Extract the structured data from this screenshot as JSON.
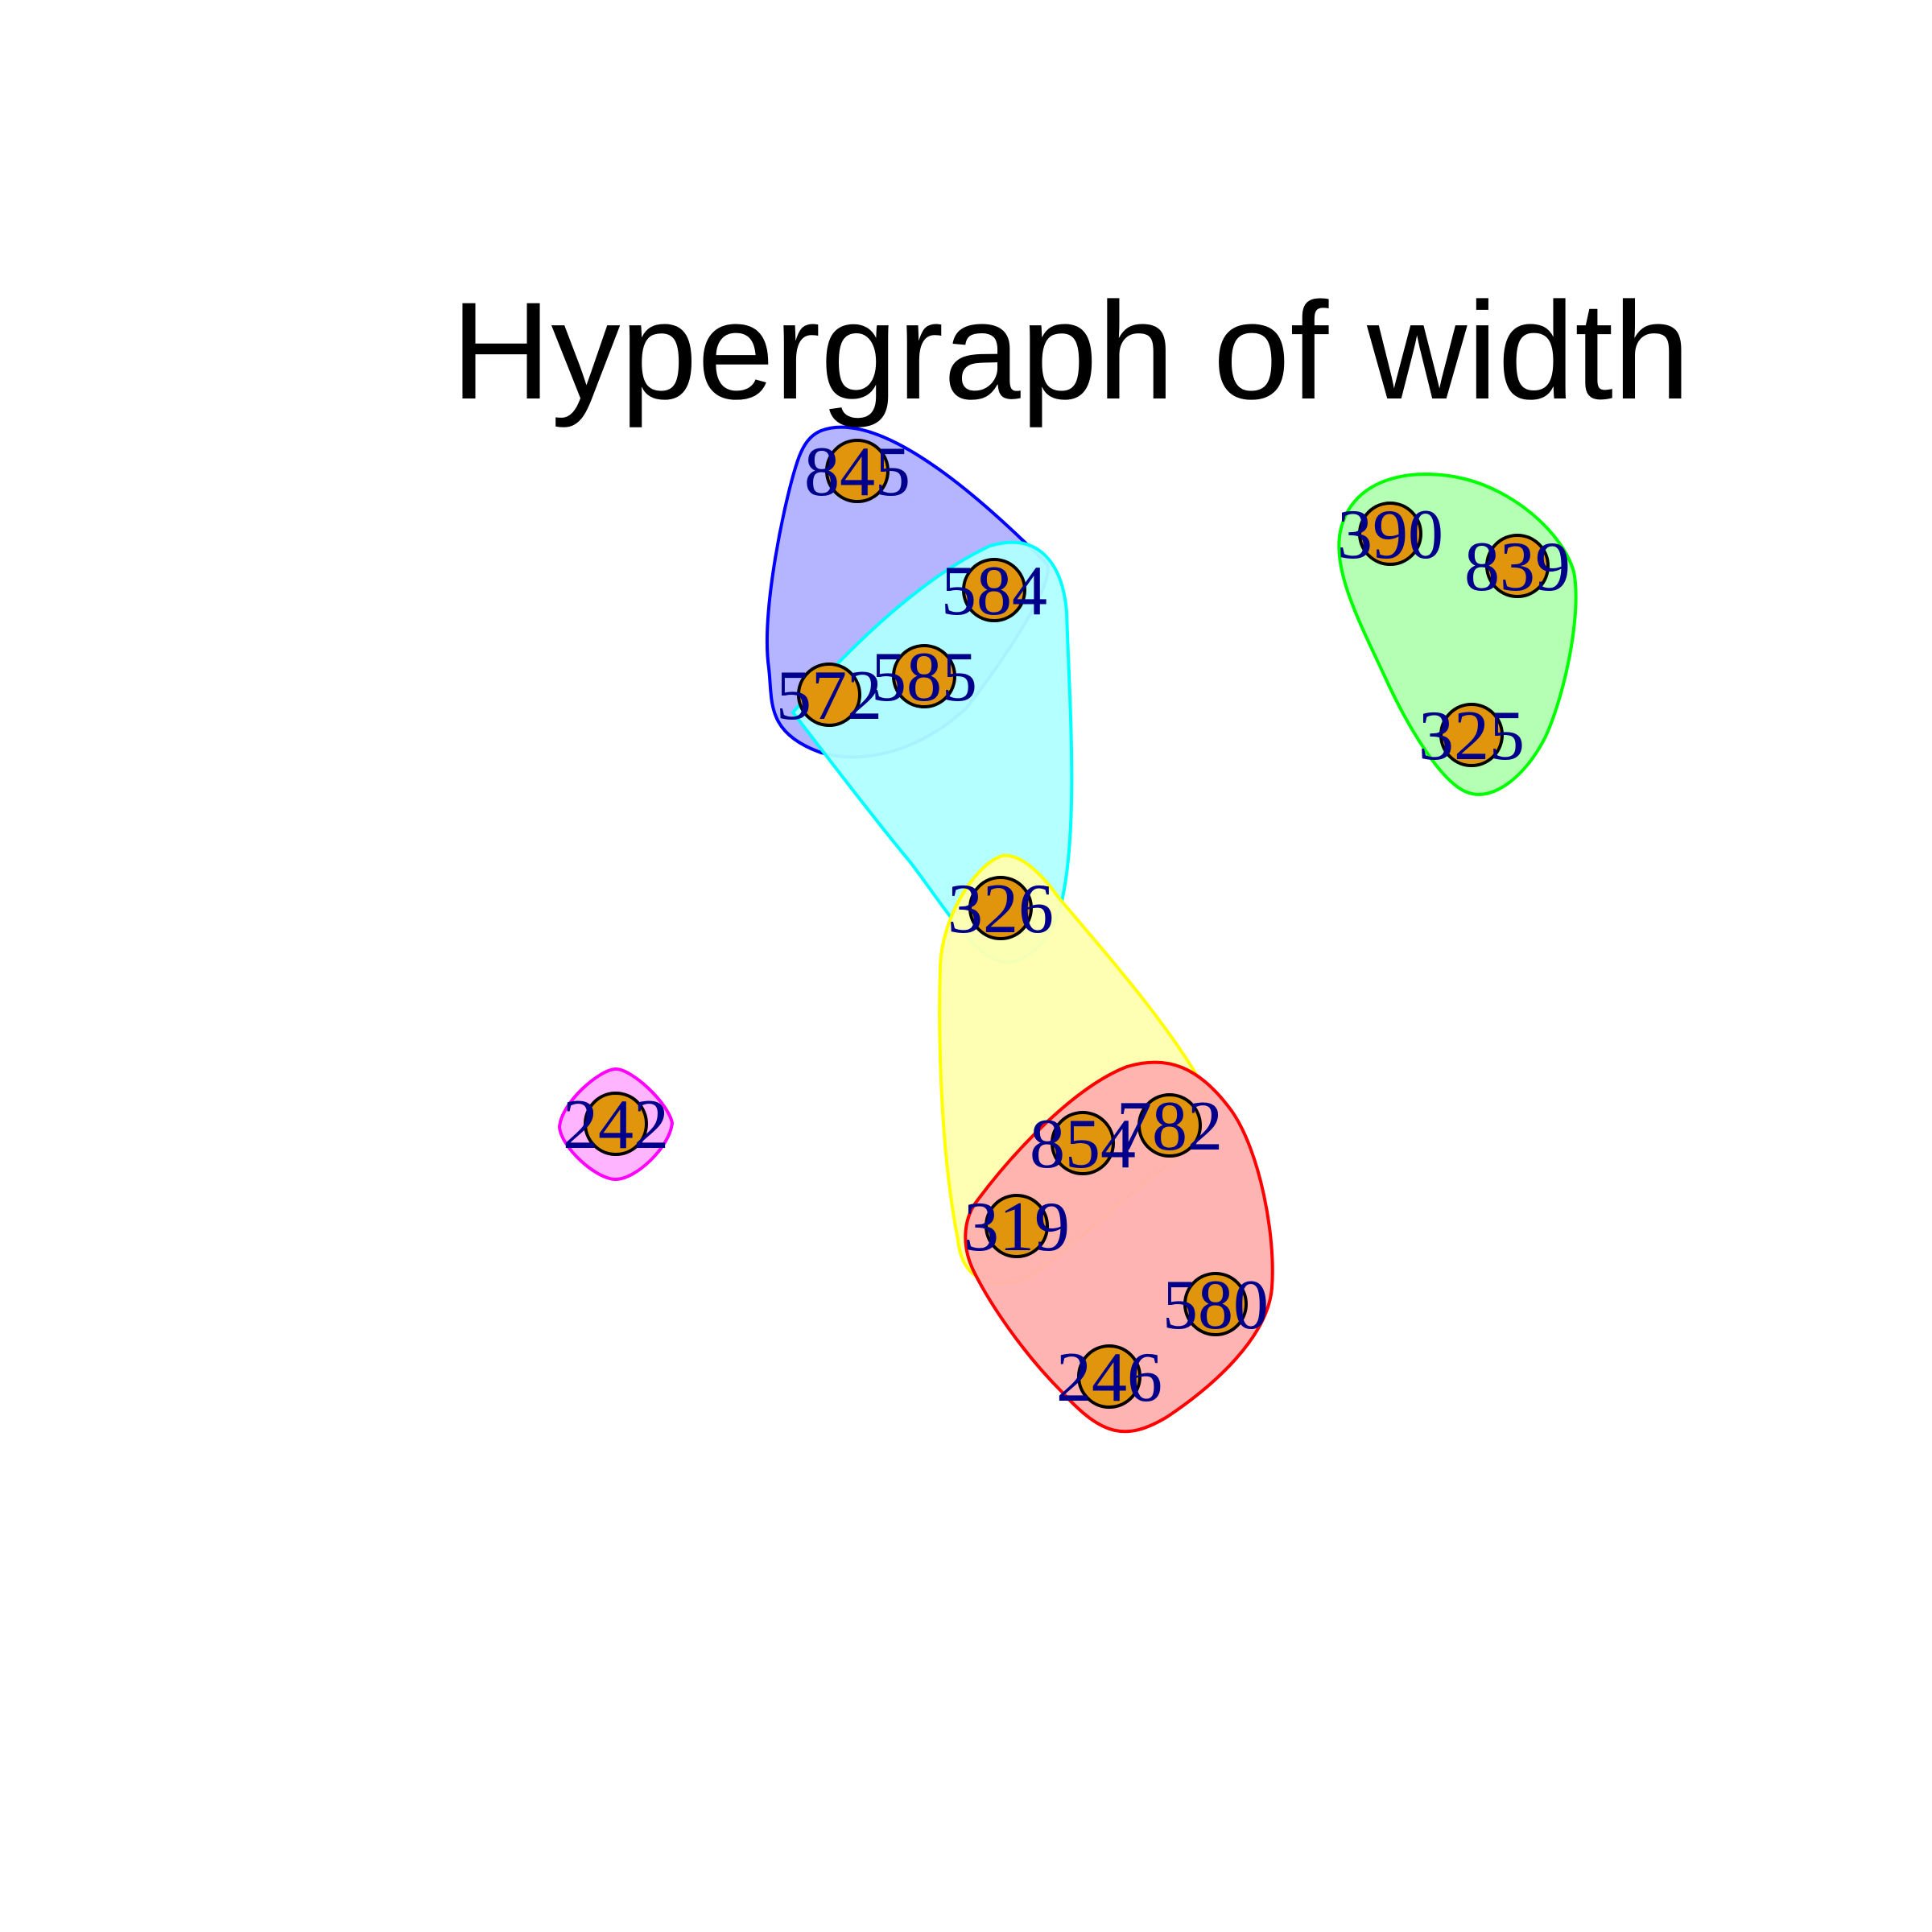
{
  "title": "Hypergraph of width",
  "colors": {
    "node_fill": "#E0950C",
    "node_border": "#000000",
    "label": "#00008B",
    "background": "#FFFFFF"
  },
  "nodes": [
    {
      "id": "845",
      "label": "845"
    },
    {
      "id": "584",
      "label": "584"
    },
    {
      "id": "572",
      "label": "572"
    },
    {
      "id": "585",
      "label": "585"
    },
    {
      "id": "326",
      "label": "326"
    },
    {
      "id": "390",
      "label": "390"
    },
    {
      "id": "839",
      "label": "839"
    },
    {
      "id": "325",
      "label": "325"
    },
    {
      "id": "242",
      "label": "242"
    },
    {
      "id": "854",
      "label": "854"
    },
    {
      "id": "782",
      "label": "782"
    },
    {
      "id": "319",
      "label": "319"
    },
    {
      "id": "580",
      "label": "580"
    },
    {
      "id": "246",
      "label": "246"
    }
  ],
  "hyperedges": [
    {
      "members": [
        "845",
        "584",
        "572",
        "585"
      ],
      "color": "blue",
      "stroke": "#0000FF",
      "fill": "#B0B0FF"
    },
    {
      "members": [
        "584",
        "572",
        "585",
        "326"
      ],
      "color": "cyan",
      "stroke": "#00FFFF",
      "fill": "#B0FFFF"
    },
    {
      "members": [
        "390",
        "839",
        "325"
      ],
      "color": "green",
      "stroke": "#00FF00",
      "fill": "#B0FFB0"
    },
    {
      "members": [
        "326",
        "782",
        "854",
        "319"
      ],
      "color": "yellow",
      "stroke": "#FFFF00",
      "fill": "#FFFFB0"
    },
    {
      "members": [
        "854",
        "782",
        "319",
        "580",
        "246"
      ],
      "color": "red",
      "stroke": "#FF0000",
      "fill": "#FFB0B0"
    },
    {
      "members": [
        "242"
      ],
      "color": "magenta",
      "stroke": "#FF00FF",
      "fill": "#FFB0FF"
    }
  ]
}
